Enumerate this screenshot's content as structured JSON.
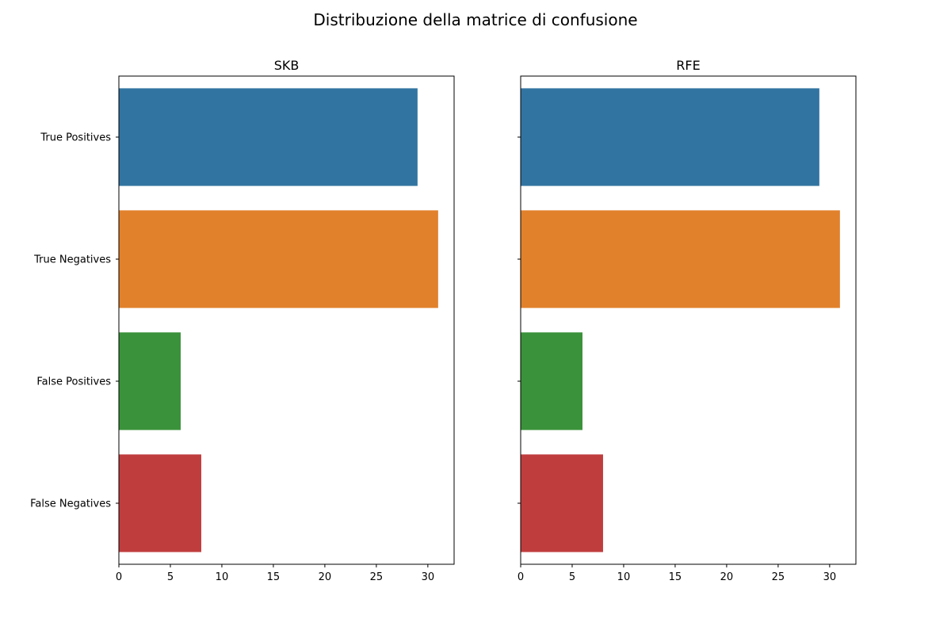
{
  "figure_title": "Distribuzione della matrice di confusione",
  "chart_data": [
    {
      "type": "bar",
      "orientation": "horizontal",
      "title": "SKB",
      "categories": [
        "True Positives",
        "True Negatives",
        "False Positives",
        "False Negatives"
      ],
      "values": [
        29,
        31,
        6,
        8
      ],
      "colors": [
        "#3274a1",
        "#e1812c",
        "#3a923a",
        "#c03d3e"
      ],
      "xlim": [
        0,
        32.55
      ],
      "xticks": [
        0,
        5,
        10,
        15,
        20,
        25,
        30
      ],
      "show_category_labels": true,
      "grid": false
    },
    {
      "type": "bar",
      "orientation": "horizontal",
      "title": "RFE",
      "categories": [
        "True Positives",
        "True Negatives",
        "False Positives",
        "False Negatives"
      ],
      "values": [
        29,
        31,
        6,
        8
      ],
      "colors": [
        "#3274a1",
        "#e1812c",
        "#3a923a",
        "#c03d3e"
      ],
      "xlim": [
        0,
        32.55
      ],
      "xticks": [
        0,
        5,
        10,
        15,
        20,
        25,
        30
      ],
      "show_category_labels": false,
      "grid": false
    }
  ]
}
